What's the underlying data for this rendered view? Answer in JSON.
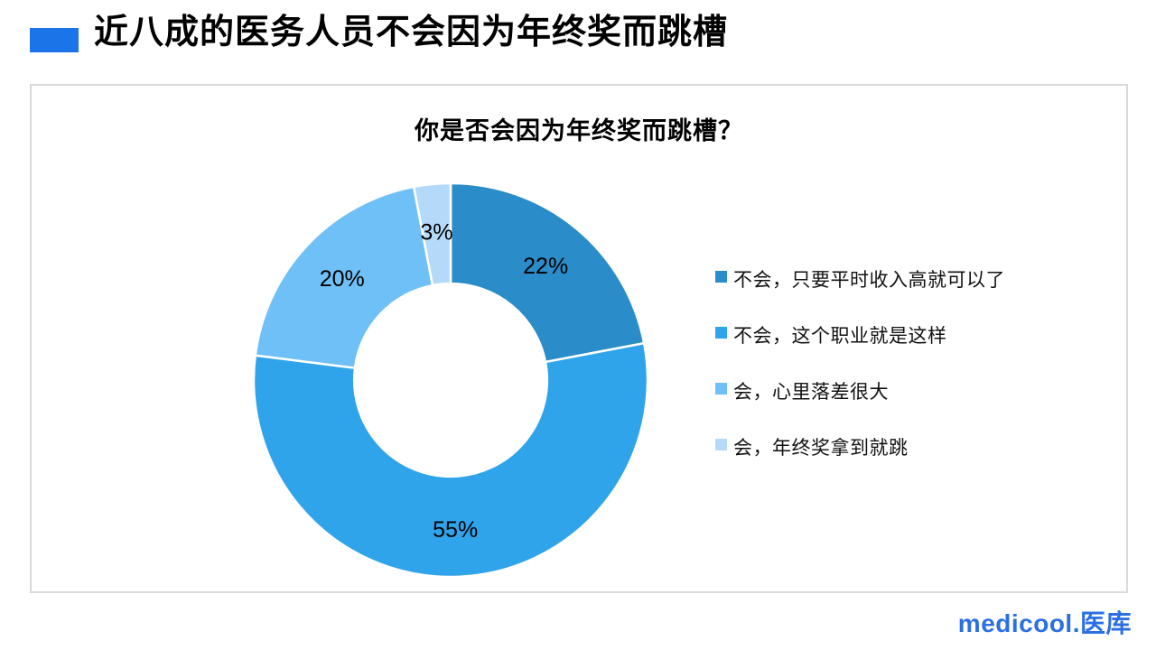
{
  "header": {
    "title": "近八成的医务人员不会因为年终奖而跳槽",
    "accent_color": "#1b74e8"
  },
  "card": {
    "border_color": "#d9d9d9",
    "background": "#ffffff"
  },
  "chart_data": {
    "type": "pie",
    "subtype": "donut",
    "title": "你是否会因为年终奖而跳槽？",
    "start_angle_deg": 0,
    "direction": "clockwise",
    "inner_radius_ratio": 0.49,
    "legend_position": "right",
    "slices": [
      {
        "label": "不会，只要平时收入高就可以了",
        "value_pct": 22,
        "data_label": "22%",
        "color": "#2a8cc8"
      },
      {
        "label": "不会，这个职业就是这样",
        "value_pct": 55,
        "data_label": "55%",
        "color": "#30a4ea"
      },
      {
        "label": "会，心里落差很大",
        "value_pct": 20,
        "data_label": "20%",
        "color": "#6fc0f7"
      },
      {
        "label": "会，年终奖拿到就跳",
        "value_pct": 3,
        "data_label": "3%",
        "color": "#b5d9f8"
      }
    ],
    "slice_separator_color": "#ffffff"
  },
  "footer": {
    "logo_text": "medicool.医库",
    "logo_color": "#2b6fe3"
  }
}
